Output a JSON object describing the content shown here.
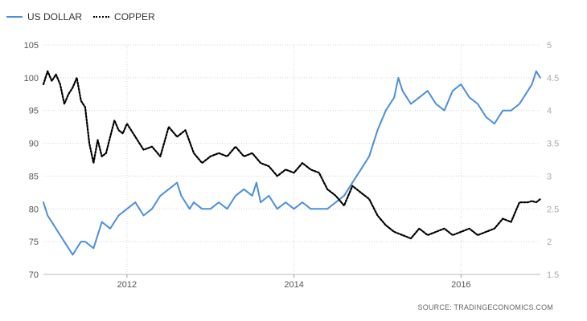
{
  "chart_data": {
    "type": "line",
    "legend_position": "top-left",
    "grid": true,
    "x_axis": {
      "range": [
        2011.0,
        2016.95
      ],
      "ticks": [
        2012,
        2014,
        2016
      ],
      "tick_labels": [
        "2012",
        "2014",
        "2016"
      ]
    },
    "y_left": {
      "range": [
        70,
        105
      ],
      "ticks": [
        70,
        75,
        80,
        85,
        90,
        95,
        100,
        105
      ],
      "tick_labels": [
        "70",
        "75",
        "80",
        "85",
        "90",
        "95",
        "100",
        "105"
      ]
    },
    "y_right": {
      "range": [
        1.5,
        5
      ],
      "ticks": [
        1.5,
        2,
        2.5,
        3,
        3.5,
        4,
        4.5,
        5
      ],
      "tick_labels": [
        "1.5",
        "2",
        "2.5",
        "3",
        "3.5",
        "4",
        "4.5",
        "5"
      ]
    },
    "series": [
      {
        "name": "US DOLLAR",
        "axis": "left",
        "color": "#4a8fdc",
        "style": "solid",
        "x": [
          2011.0,
          2011.05,
          2011.1,
          2011.2,
          2011.3,
          2011.35,
          2011.45,
          2011.5,
          2011.6,
          2011.65,
          2011.7,
          2011.8,
          2011.9,
          2012.0,
          2012.1,
          2012.2,
          2012.3,
          2012.4,
          2012.5,
          2012.6,
          2012.65,
          2012.75,
          2012.8,
          2012.9,
          2013.0,
          2013.1,
          2013.2,
          2013.3,
          2013.4,
          2013.5,
          2013.55,
          2013.6,
          2013.7,
          2013.8,
          2013.9,
          2014.0,
          2014.1,
          2014.2,
          2014.3,
          2014.4,
          2014.5,
          2014.6,
          2014.7,
          2014.8,
          2014.9,
          2015.0,
          2015.1,
          2015.2,
          2015.25,
          2015.3,
          2015.4,
          2015.5,
          2015.6,
          2015.7,
          2015.8,
          2015.9,
          2016.0,
          2016.05,
          2016.1,
          2016.2,
          2016.3,
          2016.4,
          2016.5,
          2016.6,
          2016.7,
          2016.8,
          2016.85,
          2016.9,
          2016.95
        ],
        "values": [
          81,
          79,
          78,
          76,
          74,
          73,
          75,
          75,
          74,
          76,
          78,
          77,
          79,
          80,
          81,
          79,
          80,
          82,
          83,
          84,
          82,
          80,
          81,
          80,
          80,
          81,
          80,
          82,
          83,
          82,
          84,
          81,
          82,
          80,
          81,
          80,
          81,
          80,
          80,
          80,
          81,
          82,
          84,
          86,
          88,
          92,
          95,
          97,
          100,
          98,
          96,
          97,
          98,
          96,
          95,
          98,
          99,
          98,
          97,
          96,
          94,
          93,
          95,
          95,
          96,
          98,
          99,
          101,
          100
        ]
      },
      {
        "name": "COPPER",
        "axis": "right",
        "color": "#000000",
        "style": "dotted",
        "x": [
          2011.0,
          2011.05,
          2011.1,
          2011.15,
          2011.2,
          2011.25,
          2011.3,
          2011.35,
          2011.4,
          2011.45,
          2011.5,
          2011.55,
          2011.6,
          2011.65,
          2011.7,
          2011.75,
          2011.8,
          2011.85,
          2011.9,
          2011.95,
          2012.0,
          2012.1,
          2012.2,
          2012.3,
          2012.4,
          2012.5,
          2012.6,
          2012.7,
          2012.8,
          2012.9,
          2013.0,
          2013.1,
          2013.2,
          2013.3,
          2013.4,
          2013.5,
          2013.6,
          2013.7,
          2013.8,
          2013.9,
          2014.0,
          2014.1,
          2014.2,
          2014.3,
          2014.4,
          2014.5,
          2014.6,
          2014.7,
          2014.8,
          2014.9,
          2015.0,
          2015.1,
          2015.2,
          2015.3,
          2015.4,
          2015.5,
          2015.6,
          2015.7,
          2015.8,
          2015.9,
          2016.0,
          2016.1,
          2016.2,
          2016.3,
          2016.4,
          2016.5,
          2016.6,
          2016.7,
          2016.8,
          2016.85,
          2016.9,
          2016.95
        ],
        "values": [
          4.4,
          4.6,
          4.45,
          4.55,
          4.4,
          4.1,
          4.25,
          4.35,
          4.5,
          4.15,
          4.05,
          3.5,
          3.2,
          3.55,
          3.3,
          3.35,
          3.6,
          3.85,
          3.7,
          3.65,
          3.8,
          3.6,
          3.4,
          3.45,
          3.3,
          3.75,
          3.6,
          3.7,
          3.35,
          3.2,
          3.3,
          3.35,
          3.3,
          3.45,
          3.3,
          3.35,
          3.2,
          3.15,
          3.0,
          3.1,
          3.05,
          3.2,
          3.1,
          3.05,
          2.8,
          2.7,
          2.55,
          2.85,
          2.75,
          2.65,
          2.4,
          2.25,
          2.15,
          2.1,
          2.05,
          2.2,
          2.1,
          2.15,
          2.2,
          2.1,
          2.15,
          2.2,
          2.1,
          2.15,
          2.2,
          2.35,
          2.3,
          2.6,
          2.6,
          2.62,
          2.6,
          2.65
        ]
      }
    ],
    "source_text": "SOURCE: TRADINGECONOMICS.COM"
  }
}
